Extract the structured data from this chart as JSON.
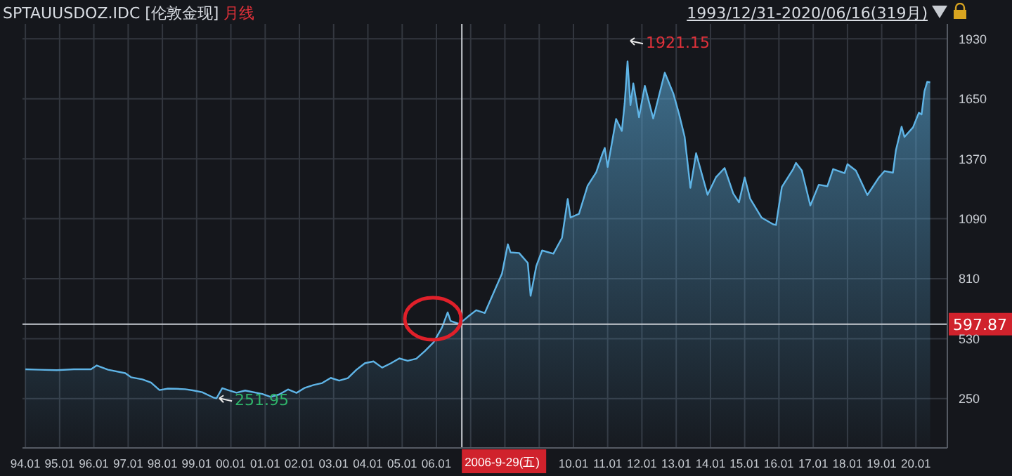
{
  "chart_data": {
    "type": "area",
    "title": "SPTAUUSDOZ.IDC [伦敦金现] 月线",
    "subtitle": "1993/12/31-2020/06/16(319月)",
    "x": [
      "1994-01",
      "1994-06",
      "1994-12",
      "1995-06",
      "1995-12",
      "1996-02",
      "1996-06",
      "1996-12",
      "1997-02",
      "1997-06",
      "1997-09",
      "1997-12",
      "1998-03",
      "1998-06",
      "1998-09",
      "1998-12",
      "1999-03",
      "1999-06",
      "1999-07",
      "1999-08",
      "1999-10",
      "1999-12",
      "2000-03",
      "2000-06",
      "2000-12",
      "2001-03",
      "2001-06",
      "2001-09",
      "2001-12",
      "2002-03",
      "2002-06",
      "2002-09",
      "2002-12",
      "2003-03",
      "2003-06",
      "2003-09",
      "2003-12",
      "2004-03",
      "2004-06",
      "2004-09",
      "2004-12",
      "2005-03",
      "2005-06",
      "2005-09",
      "2005-12",
      "2006-03",
      "2006-05",
      "2006-06",
      "2006-09",
      "2006-12",
      "2007-03",
      "2007-06",
      "2007-09",
      "2007-12",
      "2008-02",
      "2008-03",
      "2008-06",
      "2008-09",
      "2008-10",
      "2008-12",
      "2009-02",
      "2009-06",
      "2009-09",
      "2009-11",
      "2009-12",
      "2010-03",
      "2010-06",
      "2010-09",
      "2010-11",
      "2010-12",
      "2011-01",
      "2011-04",
      "2011-06",
      "2011-07",
      "2011-08",
      "2011-09",
      "2011-10",
      "2011-12",
      "2012-02",
      "2012-05",
      "2012-09",
      "2012-12",
      "2013-02",
      "2013-04",
      "2013-06",
      "2013-08",
      "2013-12",
      "2014-03",
      "2014-06",
      "2014-09",
      "2014-11",
      "2015-01",
      "2015-03",
      "2015-07",
      "2015-11",
      "2015-12",
      "2016-02",
      "2016-06",
      "2016-07",
      "2016-09",
      "2016-12",
      "2017-03",
      "2017-06",
      "2017-08",
      "2017-12",
      "2018-01",
      "2018-04",
      "2018-08",
      "2018-12",
      "2019-02",
      "2019-05",
      "2019-06",
      "2019-08",
      "2019-09",
      "2019-12",
      "2020-02",
      "2020-03",
      "2020-04",
      "2020-05",
      "2020-06"
    ],
    "series": [
      {
        "color": "#5fb4e6",
        "values": [
          387,
          385,
          383,
          387,
          387,
          405,
          385,
          369,
          350,
          340,
          325,
          290,
          297,
          296,
          294,
          288,
          280,
          261,
          255,
          252,
          299,
          290,
          278,
          288,
          272,
          258,
          270,
          293,
          277,
          301,
          314,
          323,
          347,
          334,
          346,
          385,
          416,
          424,
          395,
          415,
          438,
          427,
          437,
          473,
          513,
          582,
          653,
          613,
          599,
          632,
          663,
          650,
          743,
          834,
          971,
          933,
          930,
          884,
          730,
          869,
          942,
          927,
          1001,
          1182,
          1096,
          1113,
          1244,
          1307,
          1387,
          1421,
          1332,
          1556,
          1500,
          1628,
          1825,
          1620,
          1722,
          1564,
          1711,
          1558,
          1772,
          1675,
          1578,
          1472,
          1234,
          1396,
          1202,
          1284,
          1327,
          1208,
          1167,
          1283,
          1183,
          1095,
          1064,
          1061,
          1238,
          1322,
          1351,
          1316,
          1152,
          1249,
          1242,
          1322,
          1303,
          1345,
          1315,
          1201,
          1282,
          1313,
          1305,
          1409,
          1520,
          1472,
          1517,
          1585,
          1577,
          1686,
          1730,
          1727
        ]
      }
    ],
    "ylim": [
      20,
      2000
    ],
    "yticks": [
      250,
      530,
      810,
      1090,
      1370,
      1650,
      1930
    ],
    "xlim": [
      "1993-12",
      "2020-12"
    ],
    "xticks": [
      {
        "value": "1994-01",
        "label": "94.01"
      },
      {
        "value": "1995-01",
        "label": "95.01"
      },
      {
        "value": "1996-01",
        "label": "96.01"
      },
      {
        "value": "1997-01",
        "label": "97.01"
      },
      {
        "value": "1998-01",
        "label": "98.01"
      },
      {
        "value": "1999-01",
        "label": "99.01"
      },
      {
        "value": "2000-01",
        "label": "00.01"
      },
      {
        "value": "2001-01",
        "label": "01.01"
      },
      {
        "value": "2002-01",
        "label": "02.01"
      },
      {
        "value": "2003-01",
        "label": "03.01"
      },
      {
        "value": "2004-01",
        "label": "04.01"
      },
      {
        "value": "2005-01",
        "label": "05.01"
      },
      {
        "value": "2006-01",
        "label": "06.01"
      },
      {
        "value": "2007-01",
        "label": null
      },
      {
        "value": "2008-01",
        "label": null
      },
      {
        "value": "2009-01",
        "label": null
      },
      {
        "value": "2010-01",
        "label": "10.01"
      },
      {
        "value": "2011-01",
        "label": "11.01"
      },
      {
        "value": "2012-01",
        "label": "12.01"
      },
      {
        "value": "2013-01",
        "label": "13.01"
      },
      {
        "value": "2014-01",
        "label": "14.01"
      },
      {
        "value": "2015-01",
        "label": "15.01"
      },
      {
        "value": "2016-01",
        "label": "16.01"
      },
      {
        "value": "2017-01",
        "label": "17.01"
      },
      {
        "value": "2018-01",
        "label": "18.01"
      },
      {
        "value": "2019-01",
        "label": "19.01"
      },
      {
        "value": "2020-01",
        "label": "20.01"
      }
    ],
    "ref_lines": [
      {
        "axis": "y",
        "value": 597.87,
        "label": "597.87",
        "color": "#c8ccd2"
      },
      {
        "axis": "x",
        "value": "2006-09-29",
        "label": "2006-9-29(五)",
        "color": "#c8ccd2"
      }
    ],
    "annotations": [
      "1921.15",
      {
        "text": "251.95",
        "x": "1999-08",
        "y": 251.95
      }
    ],
    "grid": true
  }
}
